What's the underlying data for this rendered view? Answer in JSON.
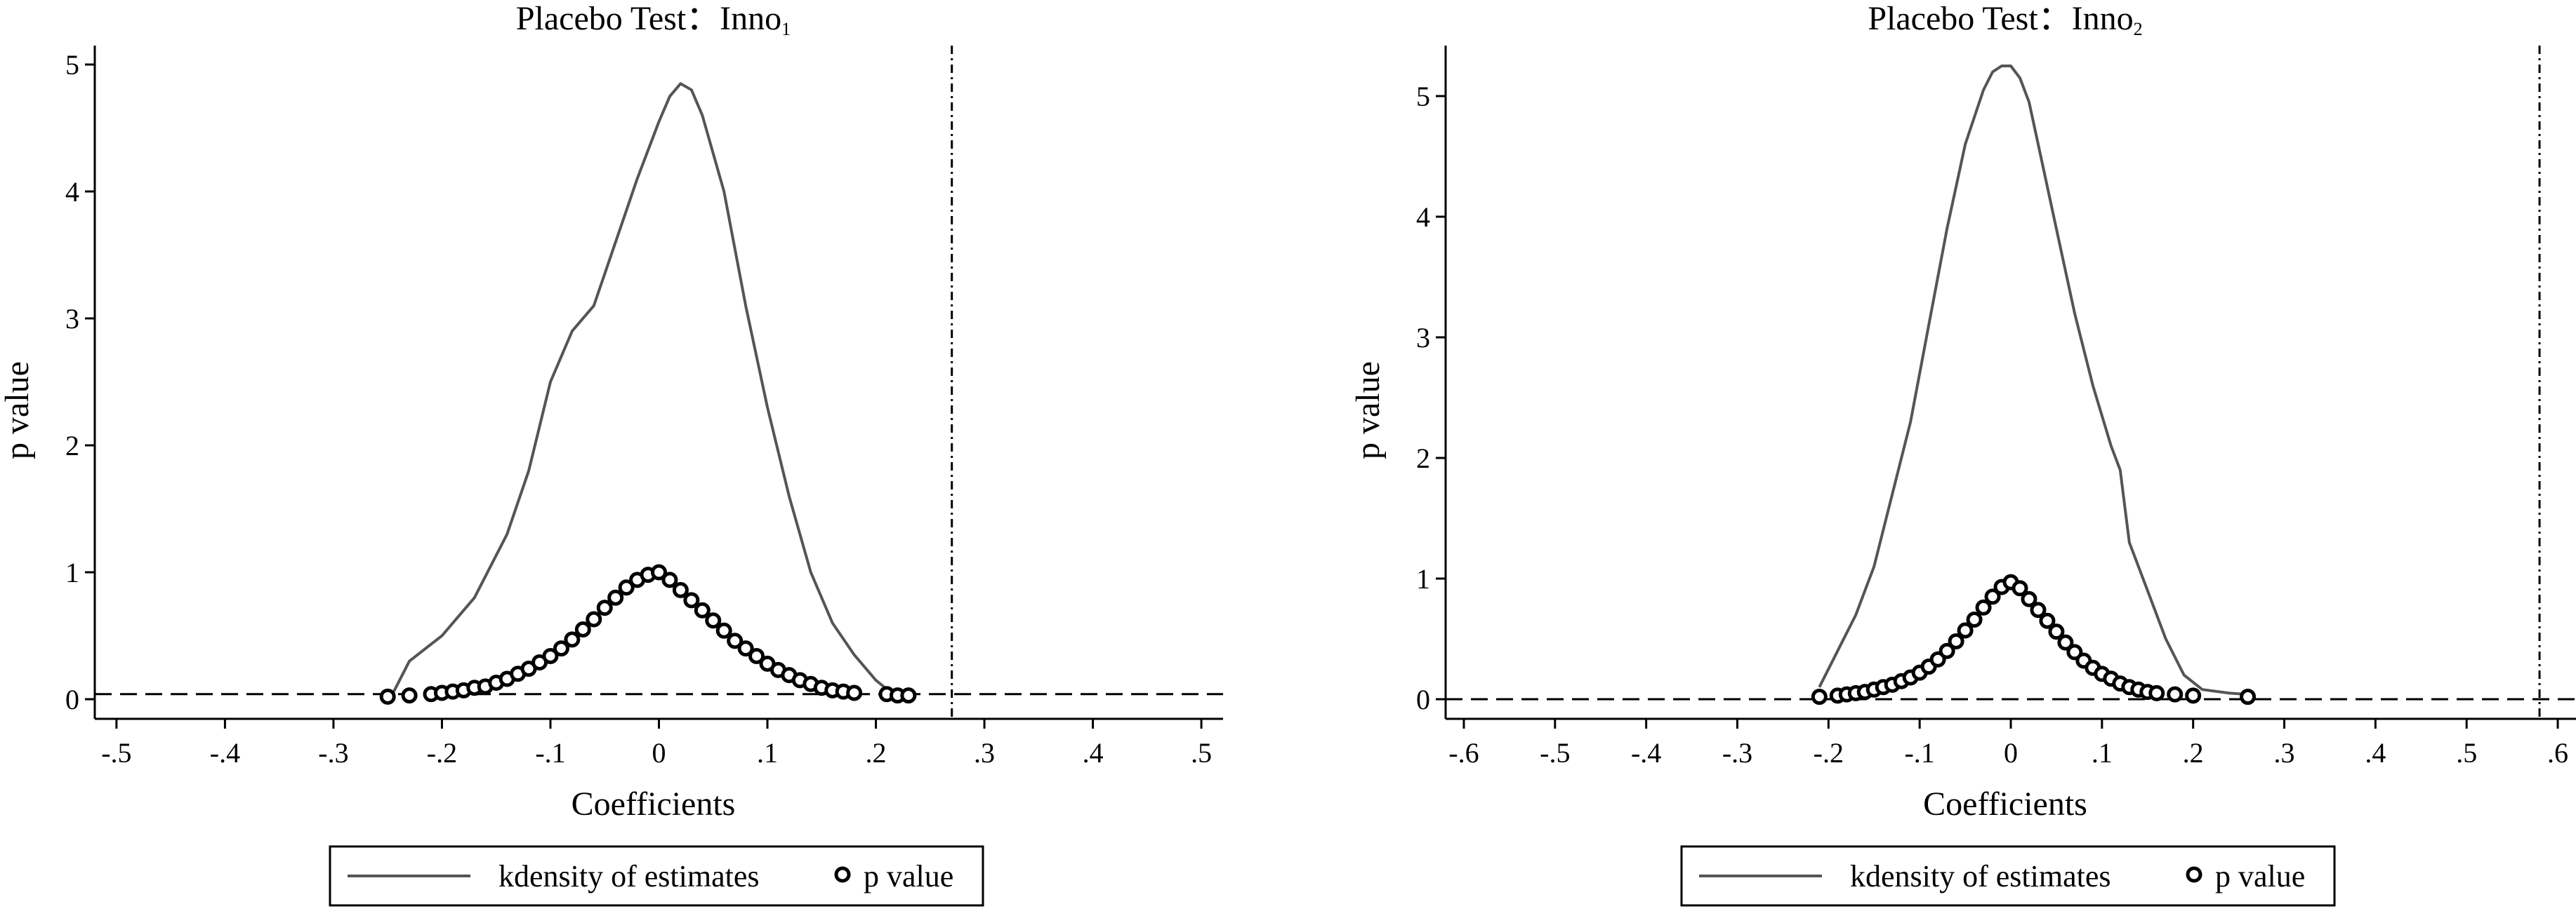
{
  "chart_data": [
    {
      "type": "line",
      "title": "Placebo Test：Inno",
      "title_subscript": "1",
      "xlabel": "Coefficients",
      "ylabel": "p value",
      "xlim": [
        -0.52,
        0.52
      ],
      "ylim": [
        0,
        5.25
      ],
      "x_ticks": [
        -0.5,
        -0.4,
        -0.3,
        -0.2,
        -0.1,
        0,
        0.1,
        0.2,
        0.3,
        0.4,
        0.5
      ],
      "x_tick_labels": [
        "-.5",
        "-.4",
        "-.3",
        "-.2",
        "-.1",
        "0",
        ".1",
        ".2",
        ".3",
        ".4",
        ".5"
      ],
      "y_ticks": [
        0,
        1,
        2,
        3,
        4,
        5
      ],
      "y_tick_labels": [
        "0",
        "1",
        "2",
        "3",
        "4",
        "5"
      ],
      "grid": false,
      "reference_lines": {
        "vertical_x": 0.27,
        "horizontal_y": 0.04
      },
      "series": [
        {
          "name": "kdensity of estimates",
          "kind": "line",
          "color": "#555555",
          "x": [
            -0.245,
            -0.23,
            -0.2,
            -0.17,
            -0.14,
            -0.12,
            -0.1,
            -0.08,
            -0.06,
            -0.04,
            -0.02,
            0.0,
            0.01,
            0.02,
            0.03,
            0.04,
            0.06,
            0.08,
            0.1,
            0.12,
            0.14,
            0.16,
            0.18,
            0.2,
            0.21,
            0.225
          ],
          "y": [
            0.05,
            0.3,
            0.5,
            0.8,
            1.3,
            1.8,
            2.5,
            2.9,
            3.1,
            3.6,
            4.1,
            4.55,
            4.75,
            4.85,
            4.8,
            4.6,
            4.0,
            3.1,
            2.3,
            1.6,
            1.0,
            0.6,
            0.35,
            0.15,
            0.08,
            0.05
          ]
        },
        {
          "name": "p value",
          "kind": "scatter",
          "color": "#000000",
          "x": [
            -0.25,
            -0.23,
            -0.21,
            -0.2,
            -0.19,
            -0.18,
            -0.17,
            -0.16,
            -0.15,
            -0.14,
            -0.13,
            -0.12,
            -0.11,
            -0.1,
            -0.09,
            -0.08,
            -0.07,
            -0.06,
            -0.05,
            -0.04,
            -0.03,
            -0.02,
            -0.01,
            0.0,
            0.01,
            0.02,
            0.03,
            0.04,
            0.05,
            0.06,
            0.07,
            0.08,
            0.09,
            0.1,
            0.11,
            0.12,
            0.13,
            0.14,
            0.15,
            0.16,
            0.17,
            0.18,
            0.21,
            0.22,
            0.23
          ],
          "y": [
            0.02,
            0.03,
            0.04,
            0.05,
            0.06,
            0.07,
            0.09,
            0.1,
            0.13,
            0.16,
            0.2,
            0.24,
            0.29,
            0.34,
            0.4,
            0.47,
            0.55,
            0.63,
            0.72,
            0.8,
            0.88,
            0.94,
            0.98,
            1.0,
            0.94,
            0.86,
            0.78,
            0.7,
            0.62,
            0.54,
            0.46,
            0.4,
            0.34,
            0.28,
            0.23,
            0.19,
            0.15,
            0.12,
            0.09,
            0.07,
            0.06,
            0.05,
            0.04,
            0.03,
            0.03
          ]
        }
      ],
      "legend": {
        "position": "bottom",
        "entries": [
          "kdensity of estimates",
          "p value"
        ],
        "marker_glyph": "o"
      }
    },
    {
      "type": "line",
      "title": "Placebo Test：Inno",
      "title_subscript": "2",
      "xlabel": "Coefficients",
      "ylabel": "p value",
      "xlim": [
        -0.62,
        0.62
      ],
      "ylim": [
        0,
        5.45
      ],
      "x_ticks": [
        -0.6,
        -0.5,
        -0.4,
        -0.3,
        -0.2,
        -0.1,
        0,
        0.1,
        0.2,
        0.3,
        0.4,
        0.5,
        0.6
      ],
      "x_tick_labels": [
        "-.6",
        "-.5",
        "-.4",
        "-.3",
        "-.2",
        "-.1",
        "0",
        ".1",
        ".2",
        ".3",
        ".4",
        ".5",
        ".6"
      ],
      "y_ticks": [
        0,
        1,
        2,
        3,
        4,
        5
      ],
      "y_tick_labels": [
        "0",
        "1",
        "2",
        "3",
        "4",
        "5"
      ],
      "grid": false,
      "reference_lines": {
        "vertical_x": 0.58,
        "horizontal_y": 0.0
      },
      "series": [
        {
          "name": "kdensity of estimates",
          "kind": "line",
          "color": "#555555",
          "x": [
            -0.21,
            -0.19,
            -0.17,
            -0.15,
            -0.13,
            -0.11,
            -0.09,
            -0.07,
            -0.05,
            -0.03,
            -0.02,
            -0.01,
            0.0,
            0.01,
            0.02,
            0.03,
            0.05,
            0.07,
            0.09,
            0.11,
            0.12,
            0.13,
            0.15,
            0.17,
            0.19,
            0.21,
            0.24,
            0.26
          ],
          "y": [
            0.1,
            0.4,
            0.7,
            1.1,
            1.7,
            2.3,
            3.1,
            3.9,
            4.6,
            5.05,
            5.2,
            5.25,
            5.25,
            5.15,
            4.95,
            4.6,
            3.9,
            3.2,
            2.6,
            2.1,
            1.9,
            1.3,
            0.9,
            0.5,
            0.2,
            0.08,
            0.05,
            0.04
          ]
        },
        {
          "name": "p value",
          "kind": "scatter",
          "color": "#000000",
          "x": [
            -0.21,
            -0.19,
            -0.18,
            -0.17,
            -0.16,
            -0.15,
            -0.14,
            -0.13,
            -0.12,
            -0.11,
            -0.1,
            -0.09,
            -0.08,
            -0.07,
            -0.06,
            -0.05,
            -0.04,
            -0.03,
            -0.02,
            -0.01,
            0.0,
            0.01,
            0.02,
            0.03,
            0.04,
            0.05,
            0.06,
            0.07,
            0.08,
            0.09,
            0.1,
            0.11,
            0.12,
            0.13,
            0.14,
            0.15,
            0.16,
            0.18,
            0.2,
            0.26
          ],
          "y": [
            0.02,
            0.03,
            0.04,
            0.05,
            0.06,
            0.08,
            0.1,
            0.12,
            0.15,
            0.18,
            0.22,
            0.27,
            0.33,
            0.4,
            0.48,
            0.57,
            0.66,
            0.76,
            0.85,
            0.93,
            0.97,
            0.92,
            0.83,
            0.74,
            0.65,
            0.56,
            0.47,
            0.39,
            0.32,
            0.26,
            0.21,
            0.17,
            0.13,
            0.1,
            0.08,
            0.06,
            0.05,
            0.04,
            0.03,
            0.02
          ]
        }
      ],
      "legend": {
        "position": "bottom",
        "entries": [
          "kdensity of estimates",
          "p value"
        ],
        "marker_glyph": "o"
      }
    }
  ]
}
